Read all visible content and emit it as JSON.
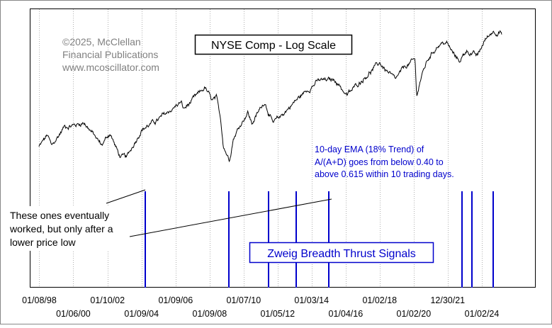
{
  "chart_data": {
    "type": "line",
    "title": "NYSE Comp - Log Scale",
    "scale": "log",
    "grid": "vertical dotted",
    "copyright": [
      "©2025, McClellan",
      "Financial Publications",
      "www.mcoscillator.com"
    ],
    "x_tick_labels": {
      "top_row": [
        "01/08/98",
        "01/10/02",
        "01/09/06",
        "01/07/10",
        "01/03/14",
        "01/02/18",
        "12/30/21"
      ],
      "bottom_row": [
        "01/06/00",
        "01/09/04",
        "01/09/08",
        "01/05/12",
        "01/04/16",
        "01/02/20",
        "01/02/24"
      ]
    },
    "price_series": {
      "name": "NYSE Composite",
      "color": "#000000",
      "x": [
        "1998-01",
        "1998-07",
        "1998-10",
        "1999-07",
        "2000-03",
        "2000-09",
        "2001-09",
        "2002-03",
        "2002-10",
        "2003-03",
        "2004-01",
        "2005-01",
        "2006-05",
        "2006-07",
        "2007-10",
        "2008-03",
        "2008-06",
        "2008-09",
        "2008-11",
        "2009-03",
        "2009-06",
        "2010-04",
        "2010-07",
        "2011-04",
        "2011-10",
        "2012-12",
        "2014-01",
        "2014-06",
        "2015-06",
        "2016-02",
        "2017-01",
        "2018-01",
        "2018-12",
        "2019-07",
        "2020-02",
        "2020-03",
        "2020-06",
        "2020-11",
        "2021-06",
        "2021-12",
        "2022-06",
        "2022-10",
        "2023-02",
        "2023-10",
        "2024-03",
        "2024-09",
        "2024-12",
        "2025-02",
        "2025-03"
      ],
      "values": [
        5100,
        5850,
        5100,
        6500,
        6600,
        6800,
        5200,
        6000,
        4550,
        4500,
        6250,
        7000,
        8600,
        7900,
        10200,
        8700,
        8950,
        7000,
        5200,
        4400,
        5700,
        7700,
        6700,
        8700,
        6650,
        8500,
        10400,
        11050,
        11150,
        9300,
        11300,
        13600,
        11100,
        13050,
        14100,
        9200,
        11400,
        14200,
        16800,
        17300,
        14700,
        14000,
        15800,
        14700,
        17700,
        19800,
        19600,
        20000,
        18800
      ]
    },
    "annotations": {
      "ema_note": [
        "10-day EMA (18% Trend) of",
        "A/(A+D) goes from below 0.40 to",
        "above 0.615 within 10 trading days."
      ],
      "worked_note": [
        "These ones eventually",
        "worked, but only after a",
        "lower price low"
      ]
    },
    "signals": {
      "label": "Zweig Breadth Thrust Signals",
      "color": "#0000cc",
      "dates": [
        "2004-04",
        "2009-03",
        "2011-07",
        "2013-02",
        "2015-01",
        "2022-11",
        "2023-06",
        "2024-09"
      ]
    },
    "x_range": [
      "1998-01",
      "2025-04"
    ],
    "colors": {
      "background": "#ffffff",
      "frame": "#000000",
      "grid": "#b0b0b0",
      "signal": "#0000cc",
      "note_text": "#0000cc"
    }
  }
}
